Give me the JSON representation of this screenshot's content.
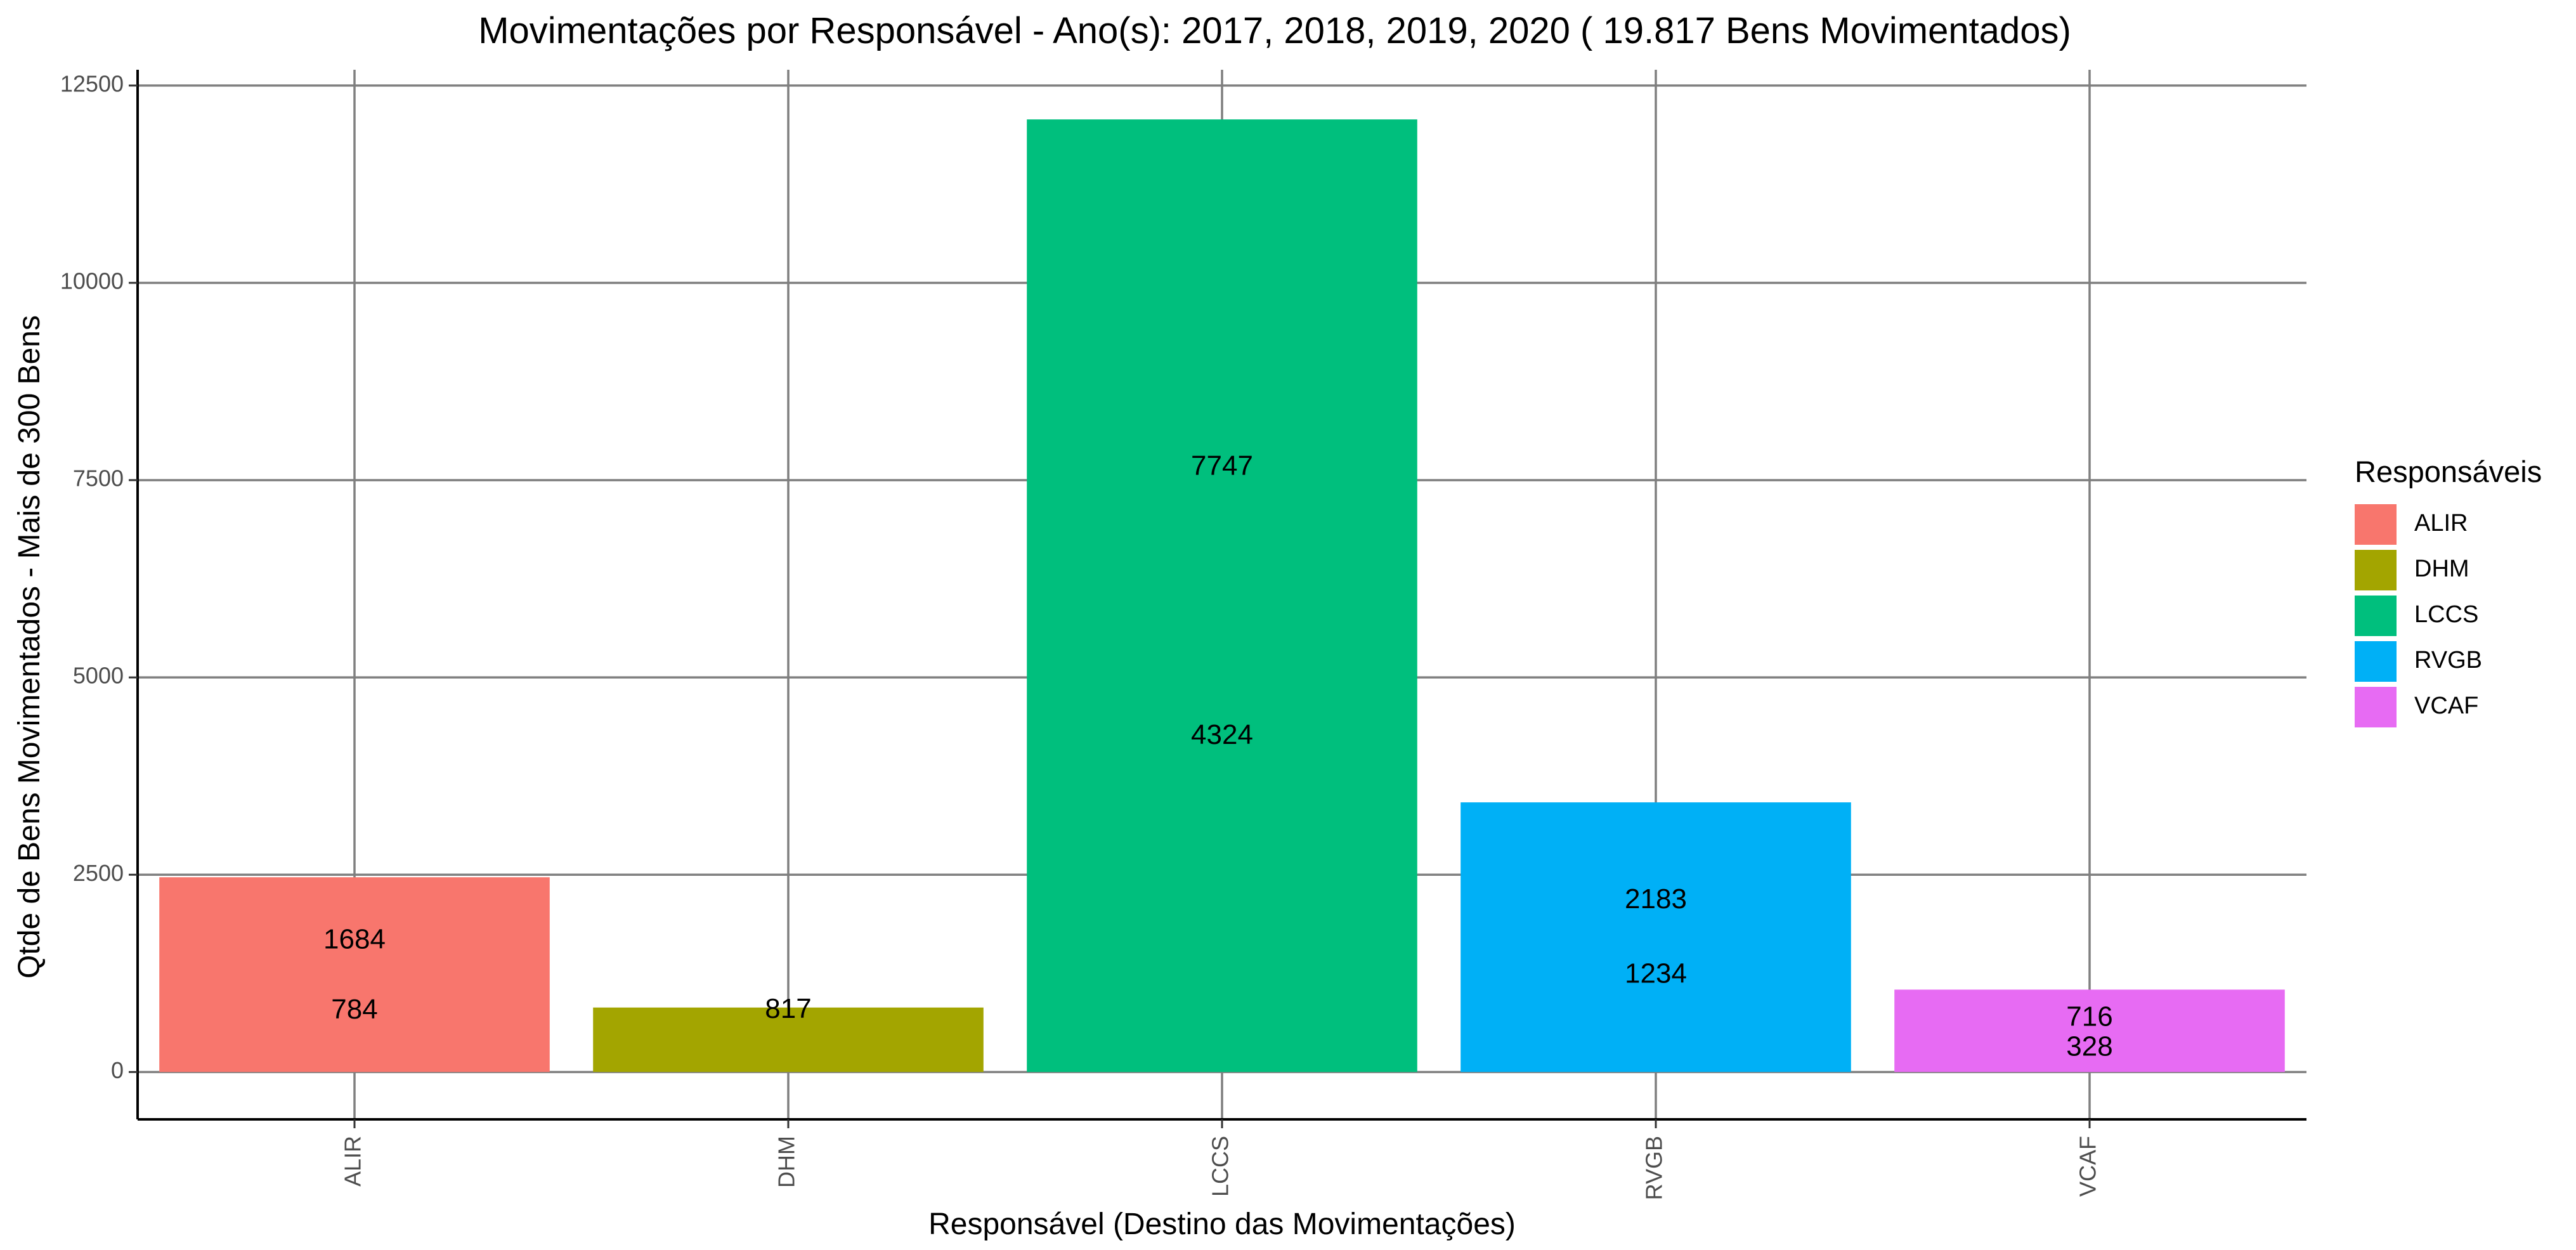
{
  "chart_data": {
    "type": "bar",
    "title": "Movimentações por Responsável  - Ano(s):  2017, 2018, 2019, 2020 ( 19.817  Bens Movimentados)",
    "xlabel": "Responsável (Destino das Movimentações)",
    "ylabel": "Qtde de Bens Movimentados - Mais de  300  Bens",
    "categories": [
      "ALIR",
      "DHM",
      "LCCS",
      "RVGB",
      "VCAF"
    ],
    "values": [
      2468,
      817,
      12071,
      3417,
      1044
    ],
    "colors": [
      "#F8766D",
      "#A3A500",
      "#00BF7D",
      "#00B0F6",
      "#E76BF3"
    ],
    "data_labels": [
      {
        "category": "ALIR",
        "labels": [
          {
            "text": "1684",
            "y": 1660
          },
          {
            "text": "784",
            "y": 770
          }
        ]
      },
      {
        "category": "DHM",
        "labels": [
          {
            "text": "817",
            "y": 780
          }
        ]
      },
      {
        "category": "LCCS",
        "labels": [
          {
            "text": "7747",
            "y": 7660
          },
          {
            "text": "4324",
            "y": 4250
          }
        ]
      },
      {
        "category": "RVGB",
        "labels": [
          {
            "text": "2183",
            "y": 2170
          },
          {
            "text": "1234",
            "y": 1225
          }
        ]
      },
      {
        "category": "VCAF",
        "labels": [
          {
            "text": "716",
            "y": 680
          },
          {
            "text": "328",
            "y": 300
          }
        ]
      }
    ],
    "ylim": [
      -600,
      12700
    ],
    "yticks": [
      0,
      2500,
      5000,
      7500,
      10000,
      12500
    ],
    "ytick_labels": [
      "0",
      "2500",
      "5000",
      "7500",
      "10000",
      "12500"
    ],
    "grid": true,
    "legend": {
      "title": "Responsáveis",
      "position": "right",
      "entries": [
        "ALIR",
        "DHM",
        "LCCS",
        "RVGB",
        "VCAF"
      ]
    }
  }
}
